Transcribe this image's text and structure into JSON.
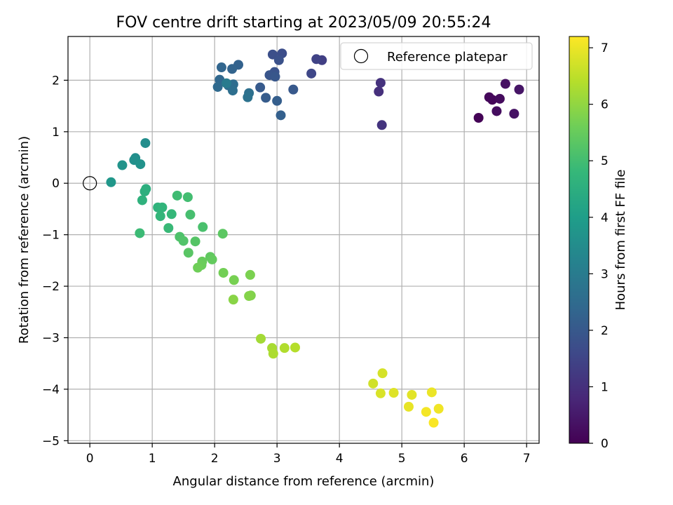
{
  "chart_data": {
    "type": "scatter",
    "title": "FOV centre drift starting at 2023/05/09 20:55:24",
    "xlabel": "Angular distance from reference (arcmin)",
    "ylabel": "Rotation from reference (arcmin)",
    "xlim": [
      -0.35,
      7.2
    ],
    "ylim": [
      -5.05,
      2.85
    ],
    "xticks": [
      0,
      1,
      2,
      3,
      4,
      5,
      6,
      7
    ],
    "yticks": [
      -5,
      -4,
      -3,
      -2,
      -1,
      0,
      1,
      2
    ],
    "grid": true,
    "legend": {
      "placement": "top-right",
      "entries": [
        {
          "label": "Reference platepar",
          "marker": "open-circle"
        }
      ]
    },
    "reference_point": {
      "x": 0,
      "y": 0
    },
    "colorbar": {
      "label": "Hours from first FF file",
      "range": [
        0,
        7.2
      ],
      "ticks": [
        0,
        1,
        2,
        3,
        4,
        5,
        6,
        7
      ],
      "colormap": "viridis",
      "colors": [
        "#440154",
        "#482878",
        "#3e4989",
        "#31688e",
        "#26828e",
        "#1f9e89",
        "#35b779",
        "#6ece58",
        "#b5de2b",
        "#fde725"
      ]
    },
    "points": [
      {
        "x": 6.23,
        "y": 1.27,
        "h": 0.05
      },
      {
        "x": 6.45,
        "y": 1.62,
        "h": 0.1
      },
      {
        "x": 6.4,
        "y": 1.67,
        "h": 0.15
      },
      {
        "x": 6.57,
        "y": 1.64,
        "h": 0.2
      },
      {
        "x": 6.52,
        "y": 1.4,
        "h": 0.25
      },
      {
        "x": 6.66,
        "y": 1.93,
        "h": 0.3
      },
      {
        "x": 6.8,
        "y": 1.35,
        "h": 0.35
      },
      {
        "x": 6.88,
        "y": 1.82,
        "h": 0.4
      },
      {
        "x": 4.63,
        "y": 1.78,
        "h": 1.0
      },
      {
        "x": 4.66,
        "y": 1.95,
        "h": 1.05
      },
      {
        "x": 4.68,
        "y": 1.13,
        "h": 1.1
      },
      {
        "x": 3.72,
        "y": 2.39,
        "h": 1.35
      },
      {
        "x": 3.63,
        "y": 2.41,
        "h": 1.45
      },
      {
        "x": 3.55,
        "y": 2.13,
        "h": 1.55
      },
      {
        "x": 3.08,
        "y": 2.52,
        "h": 1.7
      },
      {
        "x": 2.93,
        "y": 2.5,
        "h": 1.75
      },
      {
        "x": 3.03,
        "y": 2.39,
        "h": 1.8
      },
      {
        "x": 2.96,
        "y": 2.16,
        "h": 1.85
      },
      {
        "x": 2.88,
        "y": 2.1,
        "h": 1.9
      },
      {
        "x": 2.97,
        "y": 2.07,
        "h": 1.95
      },
      {
        "x": 3.26,
        "y": 1.82,
        "h": 2.0
      },
      {
        "x": 2.73,
        "y": 1.86,
        "h": 2.05
      },
      {
        "x": 2.82,
        "y": 1.66,
        "h": 2.1
      },
      {
        "x": 3.0,
        "y": 1.6,
        "h": 2.15
      },
      {
        "x": 3.06,
        "y": 1.32,
        "h": 2.2
      },
      {
        "x": 2.38,
        "y": 2.3,
        "h": 2.25
      },
      {
        "x": 2.28,
        "y": 2.22,
        "h": 2.3
      },
      {
        "x": 2.11,
        "y": 2.25,
        "h": 2.35
      },
      {
        "x": 2.08,
        "y": 2.01,
        "h": 2.4
      },
      {
        "x": 2.05,
        "y": 1.87,
        "h": 2.45
      },
      {
        "x": 2.22,
        "y": 1.9,
        "h": 2.5
      },
      {
        "x": 2.3,
        "y": 1.92,
        "h": 2.55
      },
      {
        "x": 2.29,
        "y": 1.8,
        "h": 2.6
      },
      {
        "x": 2.55,
        "y": 1.75,
        "h": 2.65
      },
      {
        "x": 2.53,
        "y": 1.67,
        "h": 2.7
      },
      {
        "x": 2.19,
        "y": 1.94,
        "h": 3.0
      },
      {
        "x": 0.89,
        "y": 0.78,
        "h": 3.5
      },
      {
        "x": 0.73,
        "y": 0.49,
        "h": 3.55
      },
      {
        "x": 0.71,
        "y": 0.45,
        "h": 3.6
      },
      {
        "x": 0.81,
        "y": 0.37,
        "h": 3.65
      },
      {
        "x": 0.52,
        "y": 0.35,
        "h": 3.7
      },
      {
        "x": 0.34,
        "y": 0.02,
        "h": 3.8
      },
      {
        "x": 0.9,
        "y": -0.11,
        "h": 4.5
      },
      {
        "x": 0.88,
        "y": -0.16,
        "h": 4.55
      },
      {
        "x": 0.84,
        "y": -0.33,
        "h": 4.6
      },
      {
        "x": 1.09,
        "y": -0.47,
        "h": 4.65
      },
      {
        "x": 1.16,
        "y": -0.47,
        "h": 4.7
      },
      {
        "x": 1.13,
        "y": -0.64,
        "h": 4.75
      },
      {
        "x": 1.31,
        "y": -0.6,
        "h": 4.8
      },
      {
        "x": 1.26,
        "y": -0.87,
        "h": 4.85
      },
      {
        "x": 0.8,
        "y": -0.97,
        "h": 4.9
      },
      {
        "x": 1.4,
        "y": -0.24,
        "h": 4.95
      },
      {
        "x": 1.57,
        "y": -0.27,
        "h": 5.0
      },
      {
        "x": 1.61,
        "y": -0.61,
        "h": 5.05
      },
      {
        "x": 1.81,
        "y": -0.85,
        "h": 5.1
      },
      {
        "x": 1.44,
        "y": -1.04,
        "h": 5.15
      },
      {
        "x": 1.5,
        "y": -1.12,
        "h": 5.2
      },
      {
        "x": 1.69,
        "y": -1.13,
        "h": 5.25
      },
      {
        "x": 1.58,
        "y": -1.35,
        "h": 5.3
      },
      {
        "x": 2.13,
        "y": -0.98,
        "h": 5.35
      },
      {
        "x": 1.93,
        "y": -1.43,
        "h": 5.4
      },
      {
        "x": 1.96,
        "y": -1.48,
        "h": 5.45
      },
      {
        "x": 1.8,
        "y": -1.52,
        "h": 5.5
      },
      {
        "x": 1.79,
        "y": -1.59,
        "h": 5.55
      },
      {
        "x": 1.73,
        "y": -1.64,
        "h": 5.6
      },
      {
        "x": 2.14,
        "y": -1.74,
        "h": 5.65
      },
      {
        "x": 2.31,
        "y": -1.88,
        "h": 5.7
      },
      {
        "x": 2.57,
        "y": -1.78,
        "h": 5.75
      },
      {
        "x": 2.58,
        "y": -2.18,
        "h": 5.8
      },
      {
        "x": 2.55,
        "y": -2.19,
        "h": 5.85
      },
      {
        "x": 2.3,
        "y": -2.26,
        "h": 5.9
      },
      {
        "x": 2.74,
        "y": -3.02,
        "h": 6.2
      },
      {
        "x": 2.92,
        "y": -3.2,
        "h": 6.25
      },
      {
        "x": 2.94,
        "y": -3.31,
        "h": 6.3
      },
      {
        "x": 3.12,
        "y": -3.2,
        "h": 6.35
      },
      {
        "x": 3.29,
        "y": -3.19,
        "h": 6.4
      },
      {
        "x": 4.54,
        "y": -3.89,
        "h": 6.7
      },
      {
        "x": 4.69,
        "y": -3.69,
        "h": 6.75
      },
      {
        "x": 4.66,
        "y": -4.08,
        "h": 6.8
      },
      {
        "x": 4.87,
        "y": -4.07,
        "h": 6.85
      },
      {
        "x": 5.16,
        "y": -4.11,
        "h": 6.9
      },
      {
        "x": 5.11,
        "y": -4.34,
        "h": 6.95
      },
      {
        "x": 5.48,
        "y": -4.06,
        "h": 7.0
      },
      {
        "x": 5.59,
        "y": -4.38,
        "h": 7.05
      },
      {
        "x": 5.39,
        "y": -4.44,
        "h": 7.1
      },
      {
        "x": 5.51,
        "y": -4.65,
        "h": 7.15
      }
    ]
  }
}
